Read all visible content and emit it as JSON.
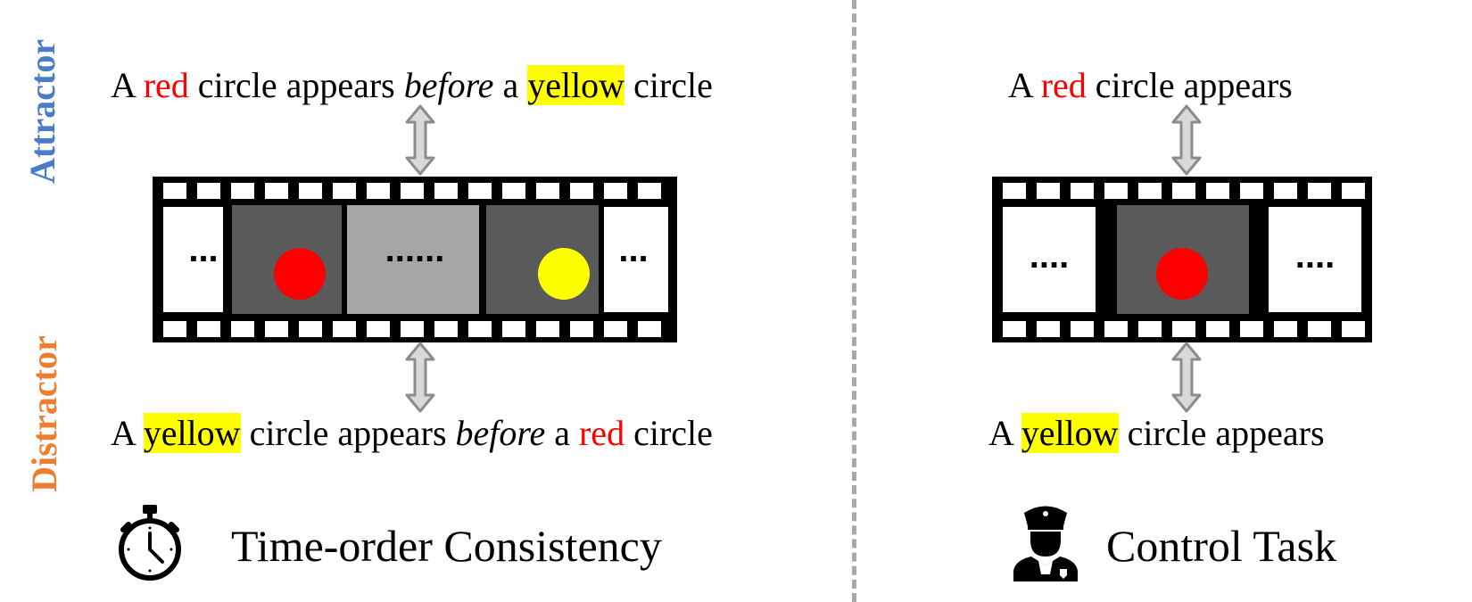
{
  "labels": {
    "attractor": "Attractor",
    "distractor": "Distractor",
    "attractor_color": "#4a7cc8",
    "distractor_color": "#ed7d31"
  },
  "left": {
    "top_sentence": {
      "w1": "A",
      "w2": "red",
      "w3": "circle appears",
      "w4": "before",
      "w5": "a",
      "w6": "yellow",
      "w7": "circle"
    },
    "bottom_sentence": {
      "w1": "A",
      "w2": "yellow",
      "w3": "circle appears",
      "w4": "before",
      "w5": "a",
      "w6": "red",
      "w7": "circle"
    },
    "frame_dots": [
      "...",
      "......",
      "..."
    ],
    "task_title": "Time-order Consistency",
    "task_icon": "stopwatch-icon"
  },
  "right": {
    "top_sentence": {
      "w1": "A",
      "w2": "red",
      "w3": "circle appears"
    },
    "bottom_sentence": {
      "w1": "A",
      "w2": "yellow",
      "w3": "circle appears"
    },
    "frame_dots": [
      "....",
      "...."
    ],
    "task_title": "Control Task",
    "task_icon": "police-officer-icon"
  },
  "colors": {
    "red": "#ff0000",
    "yellow": "#ffff00",
    "film_black": "#000000",
    "dark_frame": "#5a5a5a",
    "light_frame": "#a6a6a6",
    "arrow_fill": "#d9d9d9",
    "arrow_stroke": "#8c8c8c",
    "divider": "#a8a8a8"
  }
}
